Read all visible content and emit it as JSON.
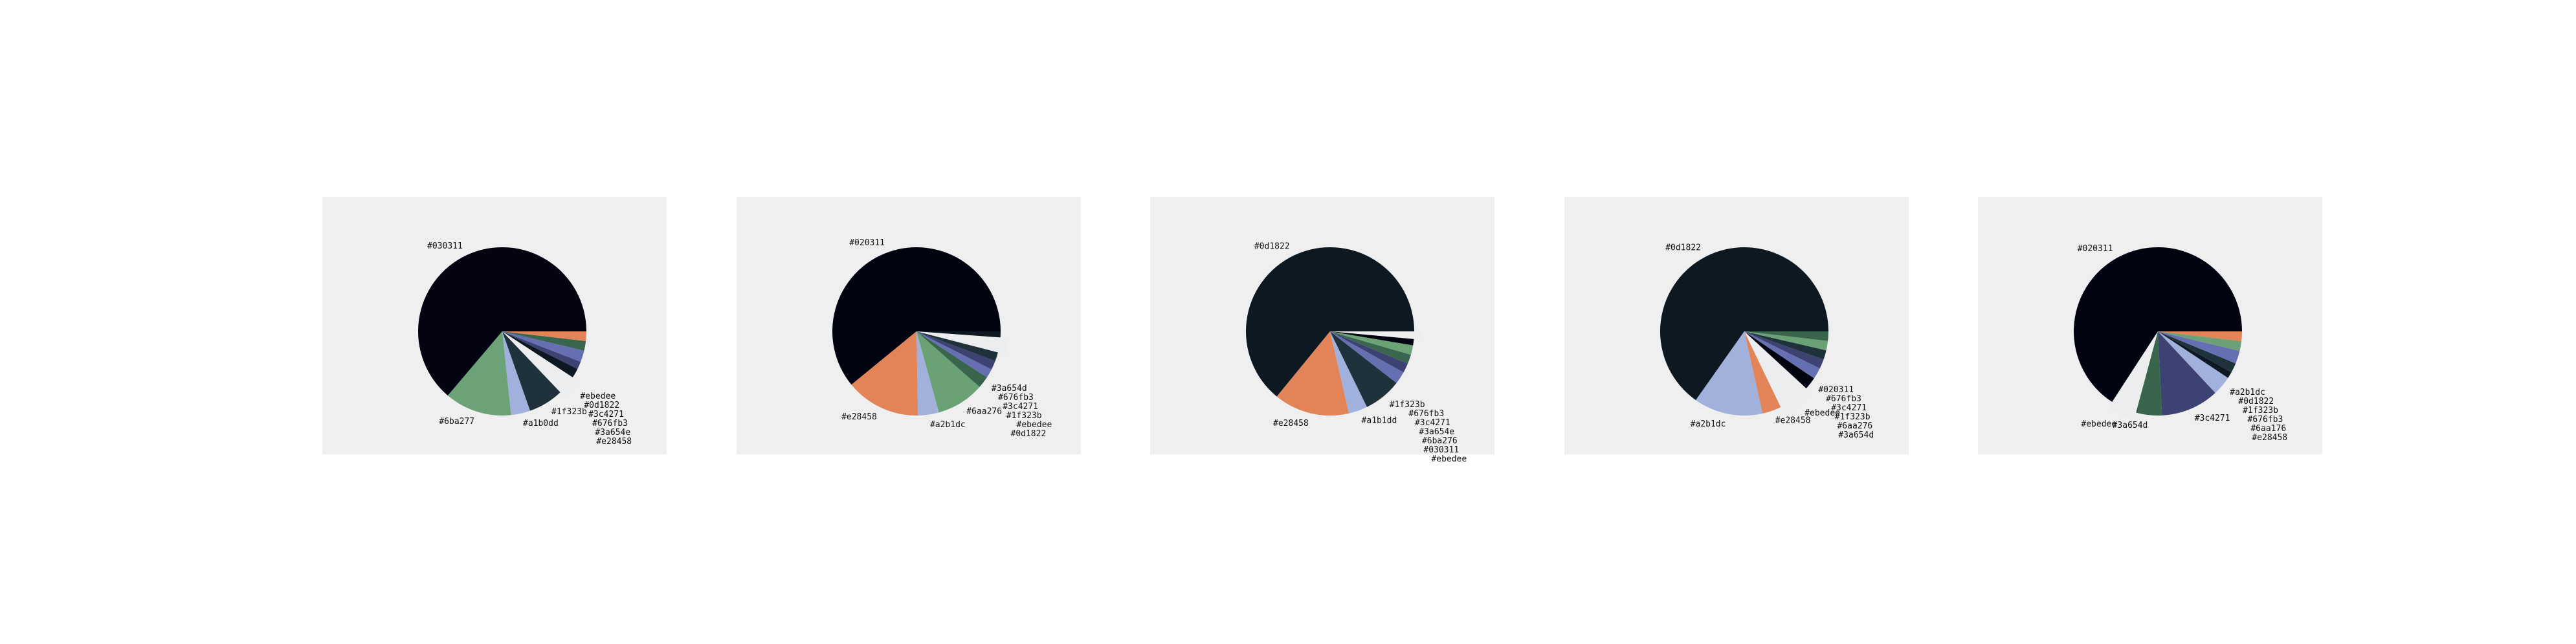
{
  "chart_data": [
    {
      "type": "pie",
      "title": "",
      "slices": [
        {
          "label": "#030311",
          "value": 52.0,
          "color": "#030311"
        },
        {
          "label": "#6ba277",
          "value": 10.5,
          "color": "#6ba277"
        },
        {
          "label": "#a1b0dd",
          "value": 3.0,
          "color": "#a1b0dd"
        },
        {
          "label": "#1f323b",
          "value": 5.5,
          "color": "#1f323b"
        },
        {
          "label": "#ebedee",
          "value": 3.0,
          "color": "#ebedee",
          "explode": true
        },
        {
          "label": "#0d1822",
          "value": 1.5,
          "color": "#0d1822"
        },
        {
          "label": "#3c4271",
          "value": 1.2,
          "color": "#3c4271"
        },
        {
          "label": "#676fb3",
          "value": 1.8,
          "color": "#676fb3"
        },
        {
          "label": "#3a654e",
          "value": 1.5,
          "color": "#3a654e"
        },
        {
          "label": "#e28458",
          "value": 1.5,
          "color": "#e28458"
        }
      ]
    },
    {
      "type": "pie",
      "title": "",
      "slices": [
        {
          "label": "#020311",
          "value": 53.0,
          "color": "#020311"
        },
        {
          "label": "#e28458",
          "value": 12.5,
          "color": "#e28458"
        },
        {
          "label": "#a2b1dc",
          "value": 3.5,
          "color": "#a2b1dc"
        },
        {
          "label": "#6aa276",
          "value": 8.0,
          "color": "#6aa276"
        },
        {
          "label": "#3a654d",
          "value": 2.0,
          "color": "#3a654d"
        },
        {
          "label": "#676fb3",
          "value": 1.5,
          "color": "#676fb3"
        },
        {
          "label": "#3c4271",
          "value": 1.5,
          "color": "#3c4271"
        },
        {
          "label": "#1f323b",
          "value": 1.5,
          "color": "#1f323b"
        },
        {
          "label": "#ebedee",
          "value": 2.5,
          "color": "#ebedee",
          "explode": true
        },
        {
          "label": "#0d1822",
          "value": 1.0,
          "color": "#0d1822"
        }
      ]
    },
    {
      "type": "pie",
      "title": "",
      "slices": [
        {
          "label": "#0d1822",
          "value": 53.0,
          "color": "#0d1822"
        },
        {
          "label": "#e28458",
          "value": 12.0,
          "color": "#e28458"
        },
        {
          "label": "#a1b1dd",
          "value": 3.0,
          "color": "#a1b1dd"
        },
        {
          "label": "#1f323b",
          "value": 6.0,
          "color": "#1f323b"
        },
        {
          "label": "#676fb3",
          "value": 2.0,
          "color": "#676fb3"
        },
        {
          "label": "#3c4271",
          "value": 1.5,
          "color": "#3c4271"
        },
        {
          "label": "#3a654e",
          "value": 1.5,
          "color": "#3a654e"
        },
        {
          "label": "#6ba276",
          "value": 1.5,
          "color": "#6ba276"
        },
        {
          "label": "#030311",
          "value": 1.0,
          "color": "#030311"
        },
        {
          "label": "#ebedee",
          "value": 1.2,
          "color": "#ebedee",
          "explode": true
        }
      ]
    },
    {
      "type": "pie",
      "title": "",
      "slices": [
        {
          "label": "#0d1822",
          "value": 54.0,
          "color": "#0d1822"
        },
        {
          "label": "#a2b1dc",
          "value": 11.0,
          "color": "#a2b1dc"
        },
        {
          "label": "#e28458",
          "value": 3.0,
          "color": "#e28458"
        },
        {
          "label": "#ebedee",
          "value": 5.0,
          "color": "#ebedee",
          "explode": true
        },
        {
          "label": "#020311",
          "value": 2.0,
          "color": "#020311"
        },
        {
          "label": "#676fb3",
          "value": 1.8,
          "color": "#676fb3"
        },
        {
          "label": "#3c4271",
          "value": 1.5,
          "color": "#3c4271"
        },
        {
          "label": "#1f323b",
          "value": 1.5,
          "color": "#1f323b"
        },
        {
          "label": "#6aa276",
          "value": 1.5,
          "color": "#6aa276"
        },
        {
          "label": "#3a654d",
          "value": 1.5,
          "color": "#3a654d"
        }
      ]
    },
    {
      "type": "pie",
      "title": "",
      "slices": [
        {
          "label": "#020311",
          "value": 53.0,
          "color": "#020311"
        },
        {
          "label": "#ebedee",
          "value": 4.0,
          "color": "#ebedee",
          "explode": true
        },
        {
          "label": "#3a654d",
          "value": 4.0,
          "color": "#3a654d"
        },
        {
          "label": "#3c4271",
          "value": 9.0,
          "color": "#3c4271"
        },
        {
          "label": "#a2b1dc",
          "value": 3.0,
          "color": "#a2b1dc"
        },
        {
          "label": "#0d1822",
          "value": 1.0,
          "color": "#0d1822"
        },
        {
          "label": "#1f323b",
          "value": 1.5,
          "color": "#1f323b"
        },
        {
          "label": "#676fb3",
          "value": 2.0,
          "color": "#676fb3"
        },
        {
          "label": "#6aa176",
          "value": 1.5,
          "color": "#6aa176"
        },
        {
          "label": "#e28458",
          "value": 1.5,
          "color": "#e28458"
        }
      ]
    }
  ]
}
